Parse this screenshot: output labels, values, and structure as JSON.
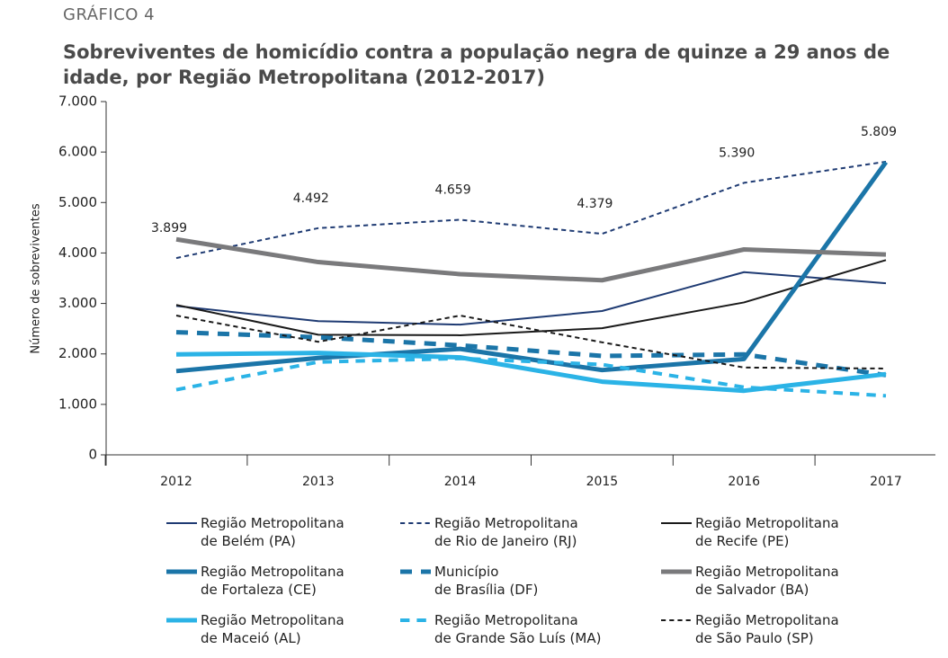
{
  "chart_data": {
    "type": "line",
    "kicker": "GRÁFICO 4",
    "title": "Sobreviventes de homicídio contra a população negra de quinze a 29 anos de idade, por Região Metropolitana (2012-2017)",
    "y_label": "Número de sobreviventes",
    "categories": [
      "2012",
      "2013",
      "2014",
      "2015",
      "2016",
      "2017"
    ],
    "ylim": [
      0,
      7000
    ],
    "yticks": [
      0,
      {
        "value": 1000,
        "label": "1.000"
      },
      {
        "value": 2000,
        "label": "2.000"
      },
      {
        "value": 3000,
        "label": "3.000"
      },
      {
        "value": 4000,
        "label": "4.000"
      },
      {
        "value": 5000,
        "label": "5.000"
      },
      {
        "value": 6000,
        "label": "6.000"
      },
      {
        "value": 7000,
        "label": "7.000"
      }
    ],
    "series": [
      {
        "name": "Região Metropolitana\nde Belém (PA)",
        "color": "#1f3b73",
        "line_width": 2,
        "dashed": false,
        "values": [
          2950,
          2650,
          2580,
          2850,
          3620,
          3400
        ]
      },
      {
        "name": "Região Metropolitana\nde Rio de Janeiro (RJ)",
        "color": "#1f3b73",
        "line_width": 2,
        "dashed": true,
        "values": [
          3899,
          4492,
          4659,
          4379,
          5390,
          5809
        ],
        "value_labels": [
          "3.899",
          "4.492",
          "4.659",
          "4.379",
          "5.390",
          "5.809"
        ]
      },
      {
        "name": "Região Metropolitana\nde Recife (PE)",
        "color": "#1a1a1a",
        "line_width": 2,
        "dashed": false,
        "values": [
          2970,
          2380,
          2370,
          2510,
          3020,
          3860
        ]
      },
      {
        "name": "Região Metropolitana\nde Fortaleza (CE)",
        "color": "#1b75a8",
        "line_width": 5,
        "dashed": false,
        "values": [
          1660,
          1920,
          2100,
          1680,
          1900,
          5800
        ]
      },
      {
        "name": "Município\nde Brasília (DF)",
        "color": "#1b75a8",
        "line_width": 5,
        "dashed": true,
        "values": [
          2430,
          2330,
          2170,
          1960,
          1990,
          1580
        ]
      },
      {
        "name": "Região Metropolitana\nde Salvador (BA)",
        "color": "#7a7a7c",
        "line_width": 5,
        "dashed": false,
        "values": [
          4270,
          3820,
          3580,
          3460,
          4070,
          3970
        ]
      },
      {
        "name": "Região Metropolitana\nde Maceió (AL)",
        "color": "#2bb3e6",
        "line_width": 5,
        "dashed": false,
        "values": [
          1990,
          2020,
          1930,
          1450,
          1270,
          1600
        ]
      },
      {
        "name": "Região Metropolitana\nde Grande São Luís (MA)",
        "color": "#2bb3e6",
        "line_width": 4,
        "dashed": true,
        "values": [
          1290,
          1840,
          1910,
          1790,
          1340,
          1170
        ]
      },
      {
        "name": "Região Metropolitana\nde São Paulo (SP)",
        "color": "#1a1a1a",
        "line_width": 2,
        "dashed": true,
        "values": [
          2760,
          2240,
          2760,
          2230,
          1730,
          1710
        ]
      }
    ]
  }
}
